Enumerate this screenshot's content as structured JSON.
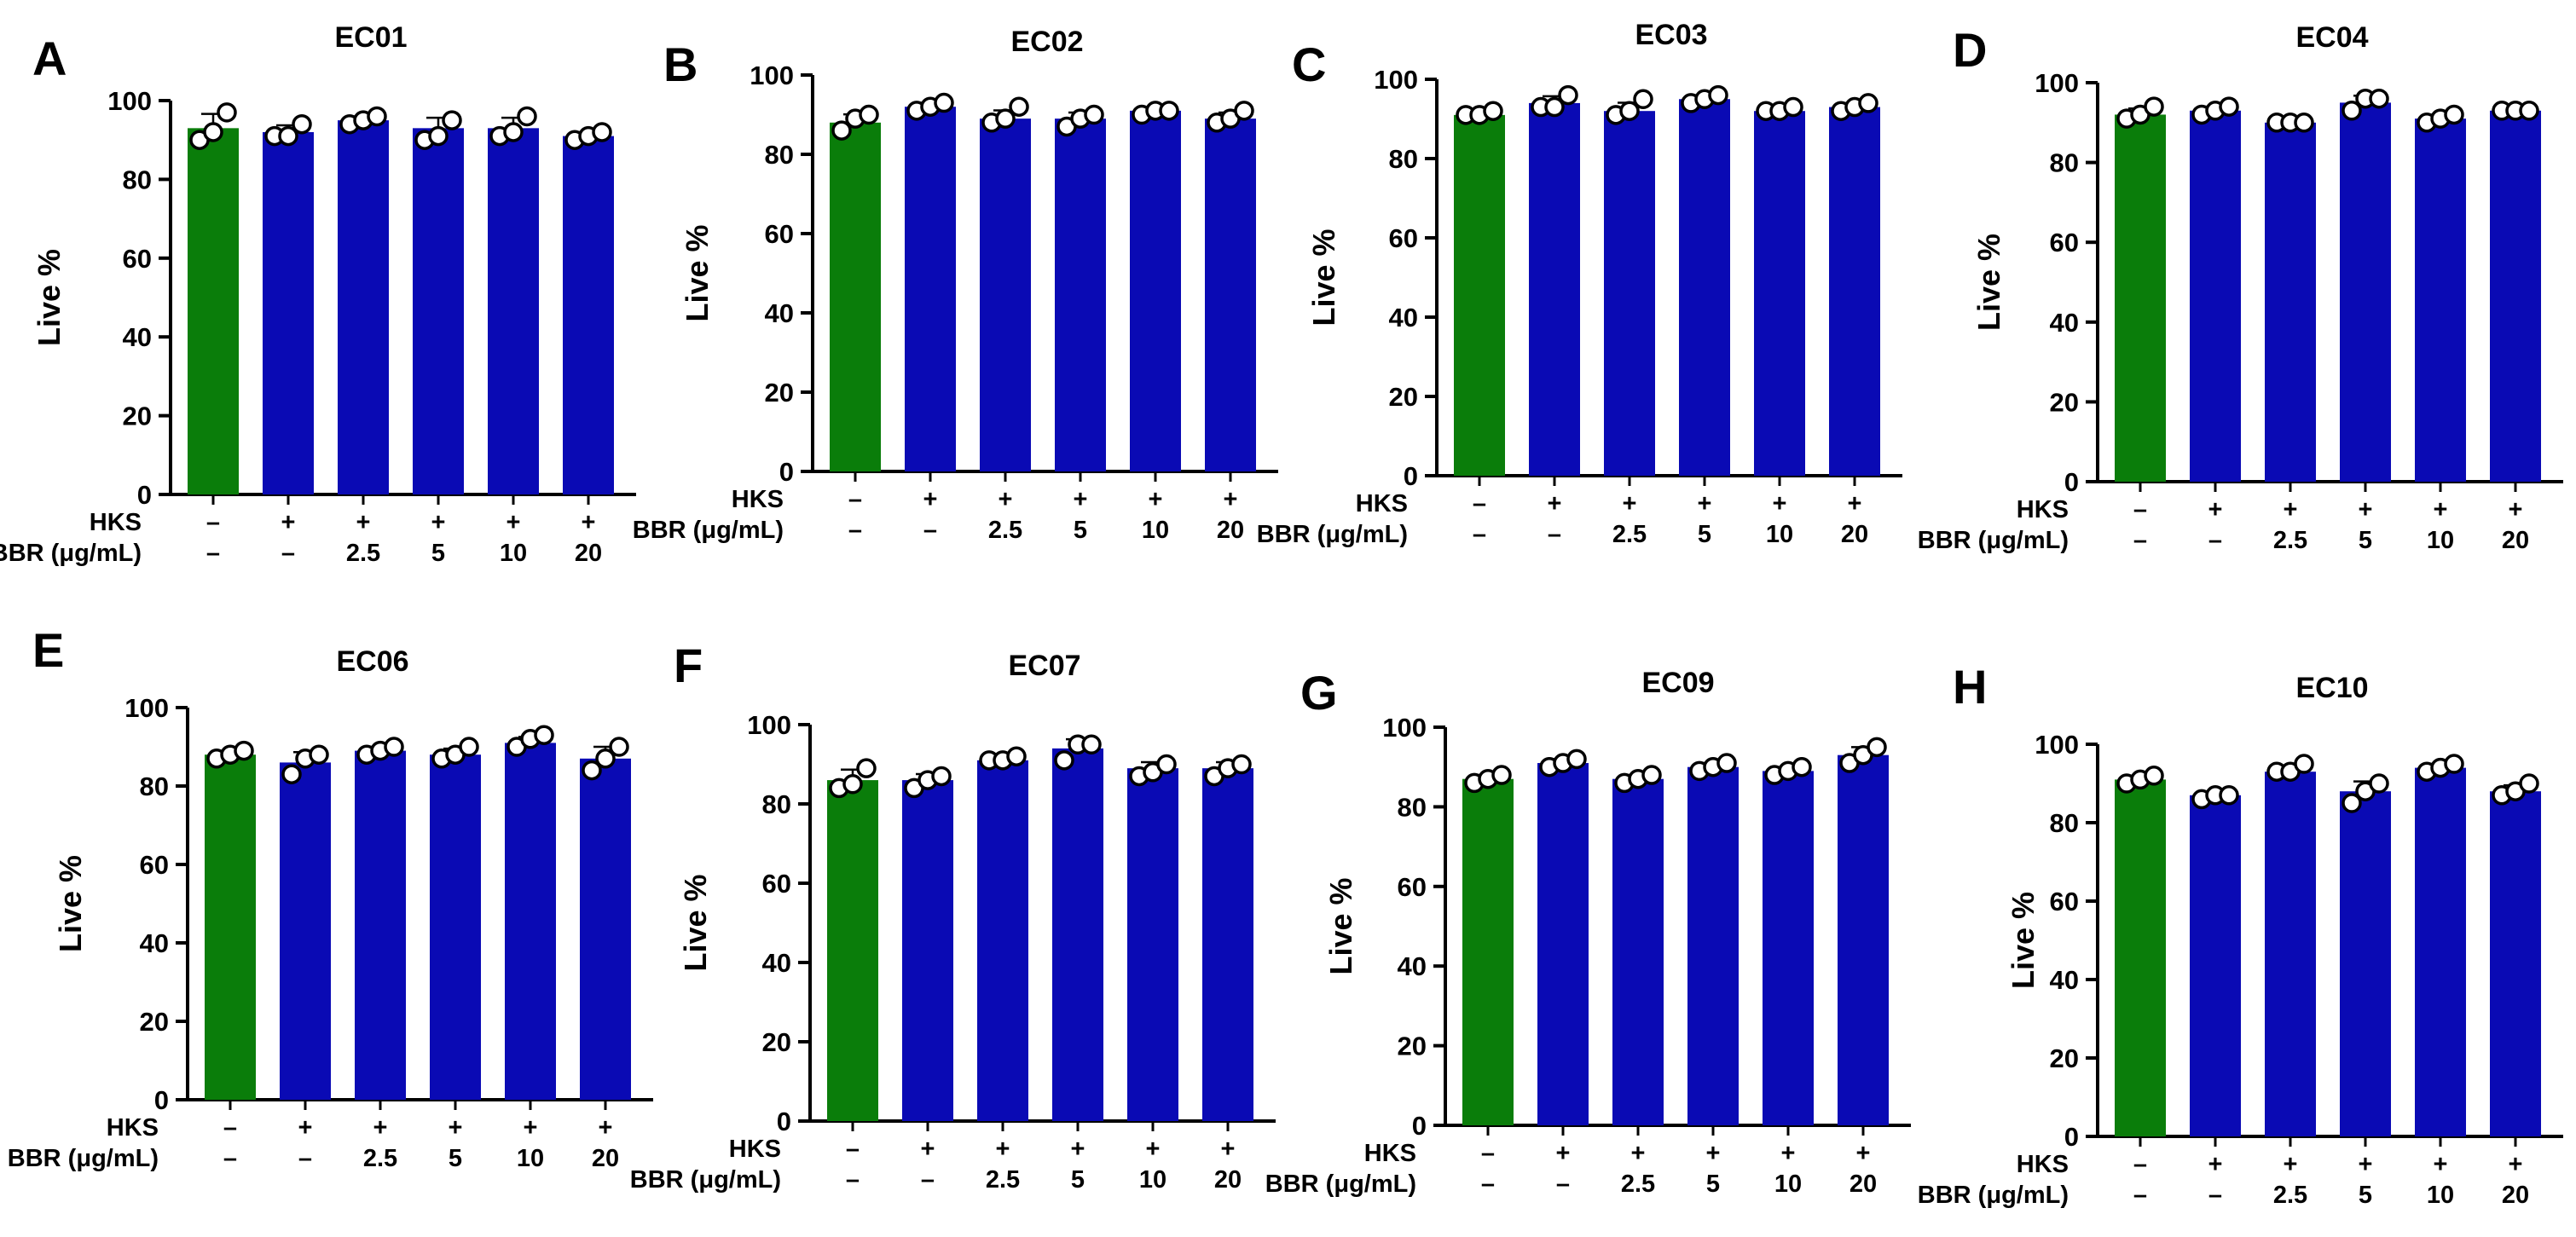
{
  "figure": {
    "row_labels": {
      "hks": "HKS",
      "bbr": "BBR (μg/mL)"
    },
    "conditions": {
      "hks": [
        "–",
        "+",
        "+",
        "+",
        "+",
        "+"
      ],
      "bbr": [
        "–",
        "–",
        "2.5",
        "5",
        "10",
        "20"
      ]
    },
    "colors": {
      "control": "#0a7d0a",
      "treated": "#0a0ab4",
      "marker_fill": "#ffffff",
      "marker_stroke": "#000000"
    }
  },
  "chart_data": [
    {
      "type": "bar",
      "panel": "A",
      "title": "EC01",
      "ylabel": "Live %",
      "ylim": [
        0,
        100
      ],
      "yticks": [
        0,
        20,
        40,
        60,
        80,
        100
      ],
      "categories": [
        "1",
        "2",
        "3",
        "4",
        "5",
        "6"
      ],
      "values": [
        93,
        92,
        95,
        93,
        93,
        91
      ],
      "points": [
        [
          90,
          92,
          97
        ],
        [
          91,
          91,
          94
        ],
        [
          94,
          95,
          96
        ],
        [
          90,
          91,
          95
        ],
        [
          91,
          92,
          96
        ],
        [
          90,
          91,
          92
        ]
      ]
    },
    {
      "type": "bar",
      "panel": "B",
      "title": "EC02",
      "ylabel": "Live %",
      "ylim": [
        0,
        100
      ],
      "yticks": [
        0,
        20,
        40,
        60,
        80,
        100
      ],
      "categories": [
        "1",
        "2",
        "3",
        "4",
        "5",
        "6"
      ],
      "values": [
        88,
        92,
        89,
        89,
        91,
        89
      ],
      "points": [
        [
          86,
          89,
          90
        ],
        [
          91,
          92,
          93
        ],
        [
          88,
          89,
          92
        ],
        [
          87,
          89,
          90
        ],
        [
          90,
          91,
          91
        ],
        [
          88,
          89,
          91
        ]
      ]
    },
    {
      "type": "bar",
      "panel": "C",
      "title": "EC03",
      "ylabel": "Live %",
      "ylim": [
        0,
        100
      ],
      "yticks": [
        0,
        20,
        40,
        60,
        80,
        100
      ],
      "categories": [
        "1",
        "2",
        "3",
        "4",
        "5",
        "6"
      ],
      "values": [
        91,
        94,
        92,
        95,
        92,
        93
      ],
      "points": [
        [
          91,
          91,
          92
        ],
        [
          93,
          93,
          96
        ],
        [
          91,
          92,
          95
        ],
        [
          94,
          95,
          96
        ],
        [
          92,
          92,
          93
        ],
        [
          92,
          93,
          94
        ]
      ]
    },
    {
      "type": "bar",
      "panel": "D",
      "title": "EC04",
      "ylabel": "Live %",
      "ylim": [
        0,
        100
      ],
      "yticks": [
        0,
        20,
        40,
        60,
        80,
        100
      ],
      "categories": [
        "1",
        "2",
        "3",
        "4",
        "5",
        "6"
      ],
      "values": [
        92,
        93,
        90,
        95,
        91,
        93
      ],
      "points": [
        [
          91,
          92,
          94
        ],
        [
          92,
          93,
          94
        ],
        [
          90,
          90,
          90
        ],
        [
          93,
          96,
          96
        ],
        [
          90,
          91,
          92
        ],
        [
          93,
          93,
          93
        ]
      ]
    },
    {
      "type": "bar",
      "panel": "E",
      "title": "EC06",
      "ylabel": "Live %",
      "ylim": [
        0,
        100
      ],
      "yticks": [
        0,
        20,
        40,
        60,
        80,
        100
      ],
      "categories": [
        "1",
        "2",
        "3",
        "4",
        "5",
        "6"
      ],
      "values": [
        88,
        86,
        89,
        88,
        91,
        87
      ],
      "points": [
        [
          87,
          88,
          89
        ],
        [
          83,
          87,
          88
        ],
        [
          88,
          89,
          90
        ],
        [
          87,
          88,
          90
        ],
        [
          90,
          92,
          93
        ],
        [
          84,
          87,
          90
        ]
      ]
    },
    {
      "type": "bar",
      "panel": "F",
      "title": "EC07",
      "ylabel": "Live %",
      "ylim": [
        0,
        100
      ],
      "yticks": [
        0,
        20,
        40,
        60,
        80,
        100
      ],
      "categories": [
        "1",
        "2",
        "3",
        "4",
        "5",
        "6"
      ],
      "values": [
        86,
        86,
        91,
        94,
        89,
        89
      ],
      "points": [
        [
          84,
          85,
          89
        ],
        [
          84,
          86,
          87
        ],
        [
          91,
          91,
          92
        ],
        [
          91,
          95,
          95
        ],
        [
          87,
          88,
          90
        ],
        [
          87,
          89,
          90
        ]
      ]
    },
    {
      "type": "bar",
      "panel": "G",
      "title": "EC09",
      "ylabel": "Live %",
      "ylim": [
        0,
        100
      ],
      "yticks": [
        0,
        20,
        40,
        60,
        80,
        100
      ],
      "categories": [
        "1",
        "2",
        "3",
        "4",
        "5",
        "6"
      ],
      "values": [
        87,
        91,
        87,
        90,
        89,
        93
      ],
      "points": [
        [
          86,
          87,
          88
        ],
        [
          90,
          91,
          92
        ],
        [
          86,
          87,
          88
        ],
        [
          89,
          90,
          91
        ],
        [
          88,
          89,
          90
        ],
        [
          91,
          93,
          95
        ]
      ]
    },
    {
      "type": "bar",
      "panel": "H",
      "title": "EC10",
      "ylabel": "Live %",
      "ylim": [
        0,
        100
      ],
      "yticks": [
        0,
        20,
        40,
        60,
        80,
        100
      ],
      "categories": [
        "1",
        "2",
        "3",
        "4",
        "5",
        "6"
      ],
      "values": [
        91,
        87,
        93,
        88,
        94,
        88
      ],
      "points": [
        [
          90,
          91,
          92
        ],
        [
          86,
          87,
          87
        ],
        [
          93,
          93,
          95
        ],
        [
          85,
          88,
          90
        ],
        [
          93,
          94,
          95
        ],
        [
          87,
          88,
          90
        ]
      ]
    }
  ]
}
